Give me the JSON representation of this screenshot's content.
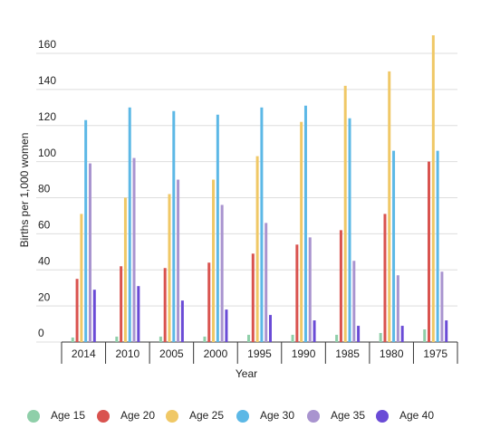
{
  "chart_data": {
    "type": "bar",
    "x_label": "Year",
    "y_label": "Births per 1,000 women",
    "categories": [
      "2014",
      "2010",
      "2005",
      "2000",
      "1995",
      "1990",
      "1985",
      "1980",
      "1975"
    ],
    "series": [
      {
        "name": "Age 15",
        "color": "#8fcfa9",
        "values": [
          2.5,
          3,
          3,
          3,
          4,
          4,
          4,
          5,
          7
        ]
      },
      {
        "name": "Age 20",
        "color": "#d9534f",
        "values": [
          35,
          42,
          41,
          44,
          49,
          54,
          62,
          71,
          100
        ]
      },
      {
        "name": "Age 25",
        "color": "#f0c866",
        "values": [
          71,
          80,
          82,
          90,
          103,
          122,
          142,
          150,
          170
        ]
      },
      {
        "name": "Age 30",
        "color": "#5cb8e6",
        "values": [
          123,
          130,
          128,
          126,
          130,
          131,
          124,
          106,
          106
        ]
      },
      {
        "name": "Age 35",
        "color": "#a994cf",
        "values": [
          99,
          102,
          90,
          76,
          66,
          58,
          45,
          37,
          39
        ]
      },
      {
        "name": "Age 40",
        "color": "#6a4bd6",
        "values": [
          29,
          31,
          23,
          18,
          15,
          12,
          9,
          9,
          12
        ]
      }
    ],
    "ylim": [
      0,
      170
    ],
    "yticks": [
      0,
      20,
      40,
      60,
      80,
      100,
      120,
      140,
      160
    ],
    "grid": true,
    "legend": "bottom"
  }
}
